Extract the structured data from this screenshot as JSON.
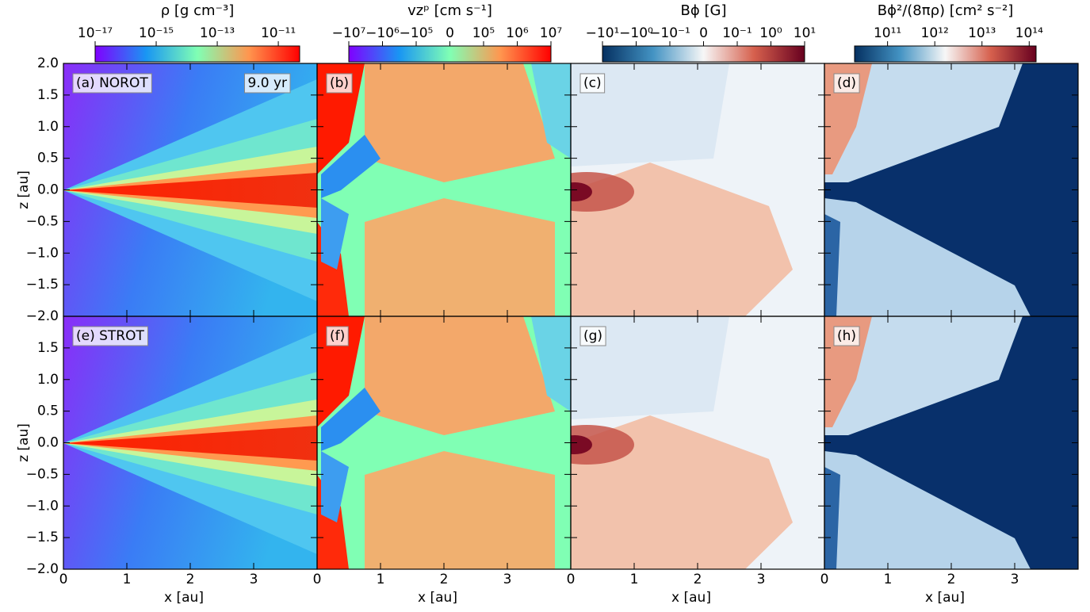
{
  "colorbars": [
    {
      "title": "ρ [g cm⁻³]",
      "scale": "log",
      "lim": [
        1e-17,
        5e-11
      ],
      "ticks": [
        {
          "value": 1e-17,
          "label": "10⁻¹⁷"
        },
        {
          "value": 1e-15,
          "label": "10⁻¹⁵"
        },
        {
          "value": 1e-13,
          "label": "10⁻¹³"
        },
        {
          "value": 1e-11,
          "label": "10⁻¹¹"
        }
      ]
    },
    {
      "title": "vzᵖ [cm s⁻¹]",
      "scale": "symlog",
      "linthresh": 100000,
      "lim": [
        -10000000,
        10000000
      ],
      "ticks": [
        {
          "value": -10000000,
          "label": "−10⁷"
        },
        {
          "value": -1000000,
          "label": "−10⁶"
        },
        {
          "value": -100000,
          "label": "−10⁵"
        },
        0,
        {
          "value": 100000,
          "label": "10⁵"
        },
        {
          "value": 1000000,
          "label": "10⁶"
        },
        {
          "value": 10000000,
          "label": "10⁷"
        }
      ]
    },
    {
      "title": "Bϕ [G]",
      "scale": "symlog",
      "linthresh": 0.1,
      "lim": [
        -10,
        10
      ],
      "ticks": [
        {
          "value": -10,
          "label": "−10¹"
        },
        {
          "value": -1,
          "label": "−10⁰"
        },
        {
          "value": -0.1,
          "label": "−10⁻¹"
        },
        0,
        {
          "value": 0.1,
          "label": "10⁻¹"
        },
        {
          "value": 1,
          "label": "10⁰"
        },
        {
          "value": 10,
          "label": "10¹"
        }
      ]
    },
    {
      "title": "Bϕ²/(8πρ) [cm² s⁻²]",
      "scale": "log",
      "lim": [
        20000000000,
        140000000000000
      ],
      "ticks": [
        {
          "value": 100000000000,
          "label": "10¹¹"
        },
        {
          "value": 1000000000000,
          "label": "10¹²"
        },
        {
          "value": 10000000000000,
          "label": "10¹³"
        },
        {
          "value": 100000000000000,
          "label": "10¹⁴"
        }
      ]
    }
  ],
  "panels": [
    {
      "label": "(a) NOROT",
      "time": "9.0 yr"
    },
    {
      "label": "(b)"
    },
    {
      "label": "(c)"
    },
    {
      "label": "(d)"
    },
    {
      "label": "(e) STROT"
    },
    {
      "label": "(f)"
    },
    {
      "label": "(g)"
    },
    {
      "label": "(h)"
    }
  ],
  "axes": {
    "xlabel": "x [au]",
    "ylabel": "z [au]",
    "xlim": [
      0,
      4
    ],
    "ylim": [
      -2,
      2
    ],
    "xticks": [
      0,
      1,
      2,
      3
    ],
    "yticks_top": [
      {
        "value": 2,
        "label": "2.0"
      },
      {
        "value": 1.5,
        "label": "1.5"
      },
      {
        "value": 1,
        "label": "1.0"
      },
      {
        "value": 0.5,
        "label": "0.5"
      },
      {
        "value": 0,
        "label": "0.0"
      },
      {
        "value": -0.5,
        "label": "−0.5"
      },
      {
        "value": -1,
        "label": "−1.0"
      },
      {
        "value": -1.5,
        "label": "−1.5"
      },
      {
        "value": -2,
        "label": "−2.0"
      }
    ],
    "yticks_bottom": [
      {
        "value": 1.5,
        "label": "1.5"
      },
      {
        "value": 1,
        "label": "1.0"
      },
      {
        "value": 0.5,
        "label": "0.5"
      },
      {
        "value": 0,
        "label": "0.0"
      },
      {
        "value": -0.5,
        "label": "−0.5"
      },
      {
        "value": -1,
        "label": "−1.0"
      },
      {
        "value": -1.5,
        "label": "−1.5"
      },
      {
        "value": -2,
        "label": "−2.0"
      }
    ]
  }
}
